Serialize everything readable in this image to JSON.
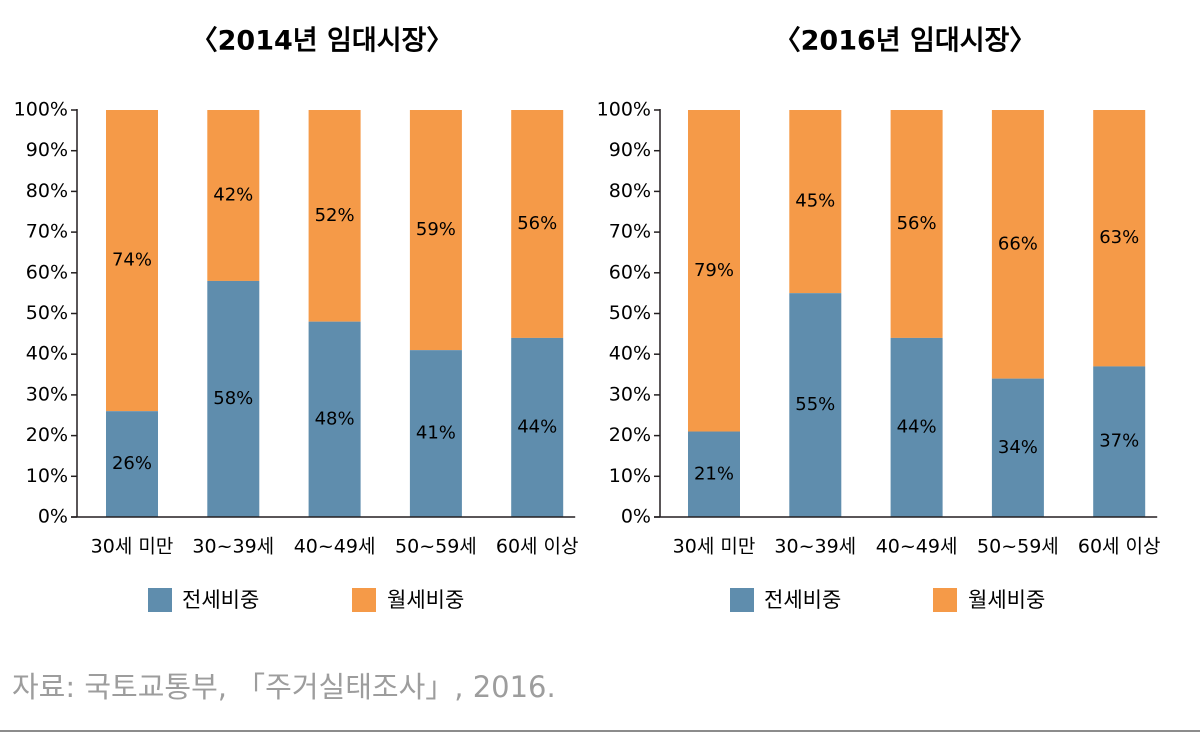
{
  "colors": {
    "jeonse": "#5f8dad",
    "wolse": "#f59a48",
    "axis": "#231f20"
  },
  "legend": {
    "jeonse_label": "전세비중",
    "wolse_label": "월세비중"
  },
  "source": "자료: 국토교통부, 「주거실태조사」, 2016.",
  "chart_data": [
    {
      "type": "bar",
      "stacked": true,
      "title": "〈2014년 임대시장〉",
      "categories": [
        "30세 미만",
        "30~39세",
        "40~49세",
        "50~59세",
        "60세 이상"
      ],
      "yticks": [
        "0%",
        "10%",
        "20%",
        "30%",
        "40%",
        "50%",
        "60%",
        "70%",
        "80%",
        "90%",
        "100%"
      ],
      "ylim": [
        0,
        100
      ],
      "series": [
        {
          "name": "전세비중",
          "values": [
            26,
            58,
            48,
            41,
            44
          ],
          "labels": [
            "26%",
            "58%",
            "48%",
            "41%",
            "44%"
          ]
        },
        {
          "name": "월세비중",
          "values": [
            74,
            42,
            52,
            59,
            56
          ],
          "labels": [
            "74%",
            "42%",
            "52%",
            "59%",
            "56%"
          ]
        }
      ],
      "legend_position": "bottom"
    },
    {
      "type": "bar",
      "stacked": true,
      "title": "〈2016년 임대시장〉",
      "categories": [
        "30세 미만",
        "30~39세",
        "40~49세",
        "50~59세",
        "60세 이상"
      ],
      "yticks": [
        "0%",
        "10%",
        "20%",
        "30%",
        "40%",
        "50%",
        "60%",
        "70%",
        "80%",
        "90%",
        "100%"
      ],
      "ylim": [
        0,
        100
      ],
      "series": [
        {
          "name": "전세비중",
          "values": [
            21,
            55,
            44,
            34,
            37
          ],
          "labels": [
            "21%",
            "55%",
            "44%",
            "34%",
            "37%"
          ]
        },
        {
          "name": "월세비중",
          "values": [
            79,
            45,
            56,
            66,
            63
          ],
          "labels": [
            "79%",
            "45%",
            "56%",
            "66%",
            "63%"
          ]
        }
      ],
      "legend_position": "bottom"
    }
  ]
}
